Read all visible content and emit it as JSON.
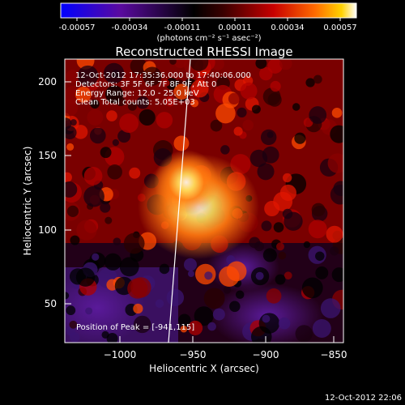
{
  "colorbar": {
    "ticks": [
      "-0.00057",
      "-0.00034",
      "-0.00011",
      "0.00011",
      "0.00034",
      "0.00057"
    ],
    "unit_label": "(photons cm⁻² s⁻¹ asec⁻²)",
    "colors": [
      "#0000ff",
      "#5a0aa0",
      "#000000",
      "#3a0000",
      "#c80000",
      "#ff6a00",
      "#ffd200",
      "#ffffff"
    ]
  },
  "title": "Reconstructed RHESSI Image",
  "info": {
    "time_range": "12-Oct-2012 17:35:36.000 to 17:40:06.000",
    "detectors": "Detectors: 3F 5F 6F 7F 8F 9F, Att 0",
    "energy": "Energy Range: 12.0 - 25.0 keV",
    "clean": "Clean    Total counts: 5.05E+03",
    "peak": "Position of Peak = [-941,115]"
  },
  "axes": {
    "x_label": "Heliocentric X (arcsec)",
    "y_label": "Heliocentric Y (arcsec)",
    "x_ticks": [
      "−1000",
      "−950",
      "−900",
      "−850"
    ],
    "y_ticks": [
      "50",
      "100",
      "150",
      "200"
    ]
  },
  "timestamp": "12-Oct-2012 22:06"
}
